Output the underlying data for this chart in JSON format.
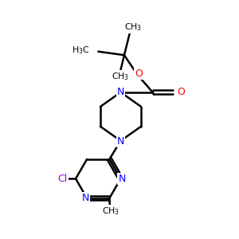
{
  "background_color": "#FFFFFF",
  "bond_color": "#000000",
  "N_color": "#0000FF",
  "O_color": "#FF0000",
  "Cl_color": "#9900CC",
  "figsize": [
    3.0,
    3.0
  ],
  "dpi": 100,
  "xlim": [
    0,
    10
  ],
  "ylim": [
    0,
    10
  ]
}
